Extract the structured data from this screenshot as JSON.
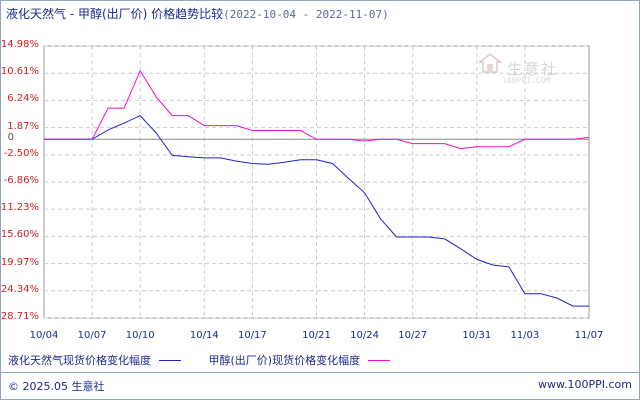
{
  "header": {
    "title": "液化天然气 - 甲醇(出厂价) 价格趋势比较",
    "range": "(2022-10-04 - 2022-11-07)"
  },
  "legend": {
    "series1_label": "液化天然气现货价格变化幅度",
    "series2_label": "甲醇(出厂价)现货价格变化幅度"
  },
  "footer": {
    "left": "© 2025.05 生意社",
    "right": "www.100PPI.com"
  },
  "watermark": {
    "text": "生意社",
    "sub": "100PPI.COM"
  },
  "colors": {
    "series1": "#2222cc",
    "series2": "#ee11cc",
    "grid": "#cccccc",
    "zero_line": "#888888",
    "tick_text": "#cc2222",
    "text": "#1b2a8a"
  },
  "chart_data": {
    "type": "line",
    "title": "液化天然气 - 甲醇(出厂价) 价格趋势比较",
    "yticks": [
      "14.98%",
      "10.61%",
      "6.24%",
      "1.87%",
      "0",
      "-2.50%",
      "-6.86%",
      "-11.23%",
      "-15.60%",
      "-19.97%",
      "-24.34%",
      "-28.71%"
    ],
    "ytick_values": [
      14.98,
      10.61,
      6.24,
      1.87,
      0,
      -2.5,
      -6.86,
      -11.23,
      -15.6,
      -19.97,
      -24.34,
      -28.71
    ],
    "xticks": [
      "10/04",
      "10/07",
      "10/10",
      "10/14",
      "10/17",
      "10/21",
      "10/24",
      "10/27",
      "10/31",
      "11/03",
      "11/07"
    ],
    "ylim": [
      -28.71,
      14.98
    ],
    "grid": true,
    "legend_position": "bottom",
    "x": [
      "2022-10-04",
      "2022-10-05",
      "2022-10-06",
      "2022-10-07",
      "2022-10-08",
      "2022-10-09",
      "2022-10-10",
      "2022-10-11",
      "2022-10-12",
      "2022-10-13",
      "2022-10-14",
      "2022-10-15",
      "2022-10-16",
      "2022-10-17",
      "2022-10-18",
      "2022-10-19",
      "2022-10-20",
      "2022-10-21",
      "2022-10-22",
      "2022-10-23",
      "2022-10-24",
      "2022-10-25",
      "2022-10-26",
      "2022-10-27",
      "2022-10-28",
      "2022-10-29",
      "2022-10-30",
      "2022-10-31",
      "2022-11-01",
      "2022-11-02",
      "2022-11-03",
      "2022-11-04",
      "2022-11-05",
      "2022-11-06",
      "2022-11-07"
    ],
    "series": [
      {
        "name": "液化天然气现货价格变化幅度",
        "values": [
          0,
          0,
          0,
          0,
          1.5,
          2.6,
          3.8,
          1.0,
          -2.6,
          -2.8,
          -3.0,
          -3.0,
          -3.5,
          -3.9,
          -4.0,
          -3.7,
          -3.3,
          -3.3,
          -3.9,
          -6.3,
          -8.6,
          -12.8,
          -15.7,
          -15.7,
          -15.7,
          -16.0,
          -17.6,
          -19.3,
          -20.2,
          -20.5,
          -24.8,
          -24.8,
          -25.5,
          -26.8,
          -26.8
        ]
      },
      {
        "name": "甲醇(出厂价)现货价格变化幅度",
        "values": [
          0,
          0,
          0,
          0,
          5.0,
          5.0,
          11.0,
          6.8,
          3.8,
          3.8,
          2.2,
          2.2,
          2.2,
          1.4,
          1.4,
          1.4,
          1.4,
          0,
          0,
          0,
          -0.3,
          0,
          0,
          -0.7,
          -0.7,
          -0.7,
          -1.5,
          -1.2,
          -1.2,
          -1.2,
          0,
          0,
          0,
          0,
          0.3
        ]
      }
    ]
  }
}
